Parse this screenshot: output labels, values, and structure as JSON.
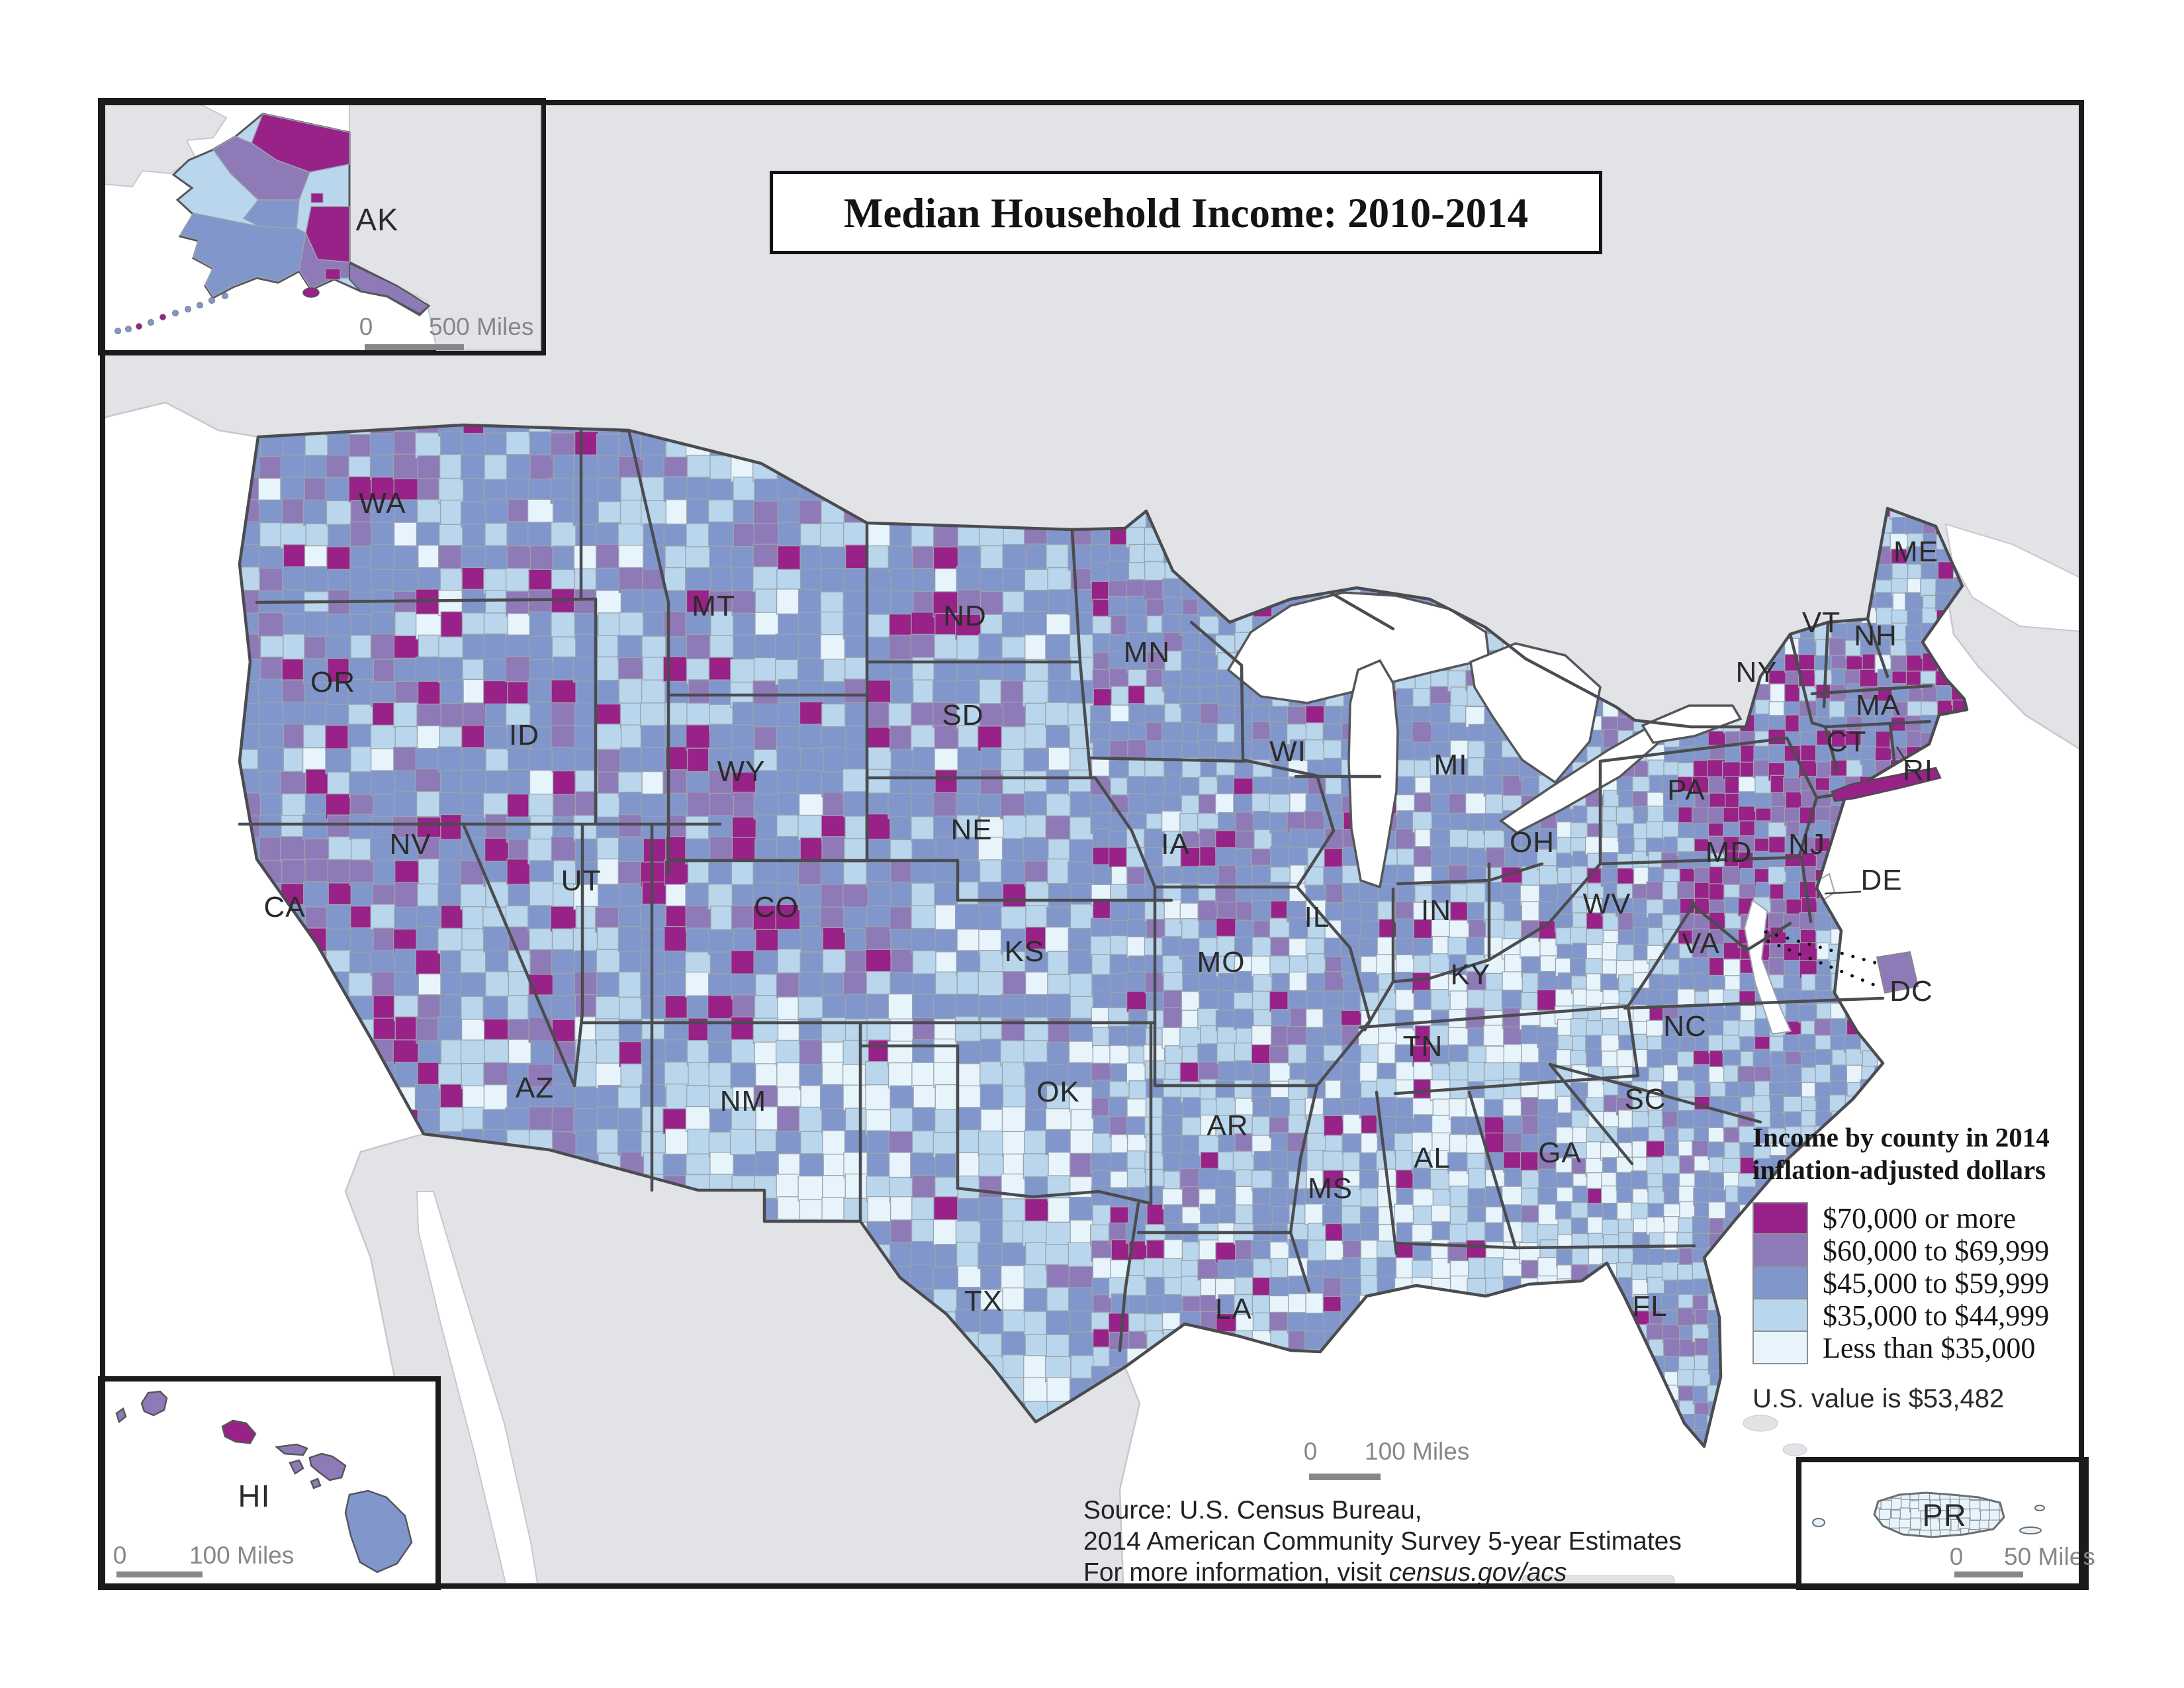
{
  "title": "Median Household Income: 2010-2014",
  "legend": {
    "heading_line1": "Income by county in 2014",
    "heading_line2": "inflation-adjusted dollars",
    "items": [
      {
        "label": "$70,000 or more",
        "color": "#982287"
      },
      {
        "label": "$60,000 to $69,999",
        "color": "#8f7ab8"
      },
      {
        "label": "$45,000 to $59,999",
        "color": "#8197cc"
      },
      {
        "label": "$35,000 to $44,999",
        "color": "#b9d6ec"
      },
      {
        "label": "Less than $35,000",
        "color": "#e8f4fb"
      }
    ],
    "note": "U.S. value is $53,482"
  },
  "source": {
    "line1": "Source: U.S. Census Bureau,",
    "line2": "2014 American Community Survey 5-year Estimates",
    "line3_prefix": "For more information, visit ",
    "line3_italic": "census.gov/acs"
  },
  "map": {
    "state_labels": [
      "WA",
      "OR",
      "ID",
      "MT",
      "WY",
      "NV",
      "UT",
      "CA",
      "AZ",
      "NM",
      "CO",
      "ND",
      "SD",
      "NE",
      "KS",
      "OK",
      "TX",
      "MN",
      "IA",
      "MO",
      "AR",
      "LA",
      "WI",
      "IL",
      "MS",
      "MI",
      "IN",
      "OH",
      "KY",
      "TN",
      "AL",
      "GA",
      "WV",
      "VA",
      "NC",
      "SC",
      "FL",
      "PA",
      "NY",
      "ME",
      "VT",
      "NH",
      "MA",
      "CT",
      "NJ",
      "MD",
      "RI",
      "DE",
      "DC"
    ],
    "scalebar": {
      "zero": "0",
      "label": "100 Miles"
    }
  },
  "insets": {
    "alaska": {
      "label": "AK",
      "scale_zero": "0",
      "scale_label": "500 Miles"
    },
    "hawaii": {
      "label": "HI",
      "scale_zero": "0",
      "scale_label": "100 Miles"
    },
    "puerto_rico": {
      "label": "PR",
      "scale_zero": "0",
      "scale_label": "50 Miles"
    }
  },
  "colors": {
    "water": "#ffffff",
    "neighbor_land": "#e2e3e6",
    "neighbor_stroke": "#c6c8cc",
    "county_stroke": "#9aa3ad",
    "state_stroke": "#4b4c50",
    "frame": "#1b1b1b",
    "scale_gray": "#85878a",
    "label_color": "#2b2b2b"
  }
}
